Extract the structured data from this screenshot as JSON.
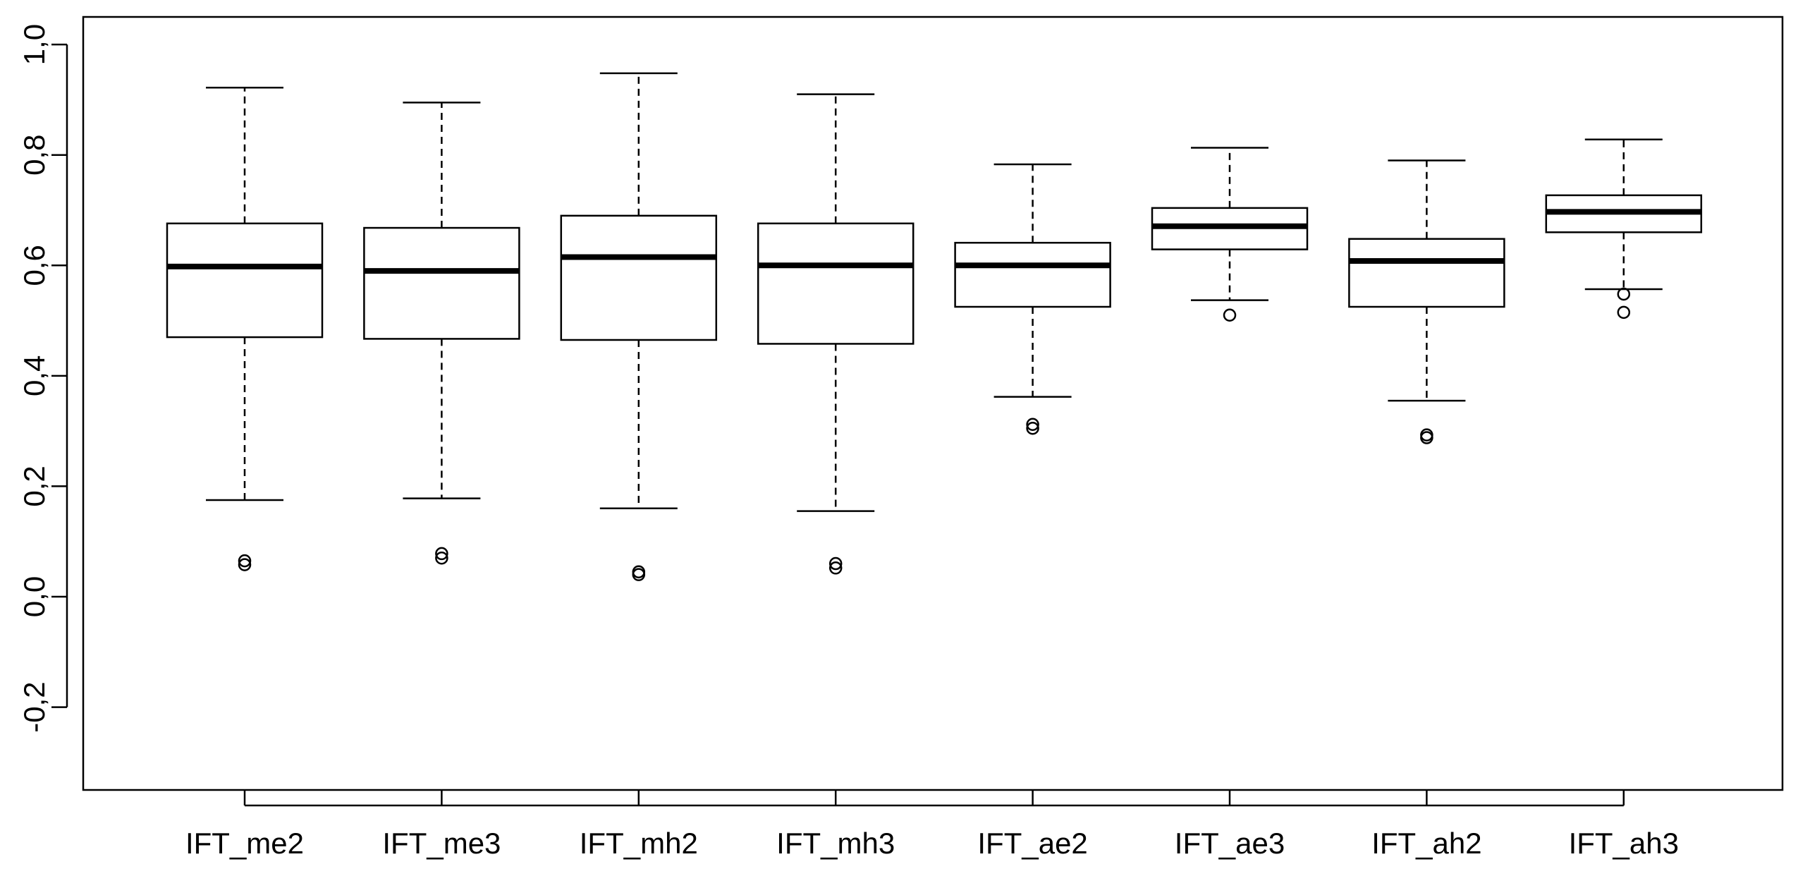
{
  "chart_data": {
    "type": "boxplot",
    "title": "",
    "xlabel": "",
    "ylabel": "",
    "ylim": [
      -0.35,
      1.05
    ],
    "y_ticks": [
      -0.2,
      0.0,
      0.2,
      0.4,
      0.6,
      0.8,
      1.0
    ],
    "y_tick_labels": [
      "-0,2",
      "0,0",
      "0,2",
      "0,4",
      "0,6",
      "0,8",
      "1,0"
    ],
    "grid": false,
    "categories": [
      "IFT_me2",
      "IFT_me3",
      "IFT_mh2",
      "IFT_mh3",
      "IFT_ae2",
      "IFT_ae3",
      "IFT_ah2",
      "IFT_ah3"
    ],
    "boxes": [
      {
        "category": "IFT_me2",
        "whisker_low": 0.175,
        "q1": 0.47,
        "median": 0.598,
        "q3": 0.676,
        "whisker_high": 0.922,
        "outliers": [
          0.058,
          0.065
        ]
      },
      {
        "category": "IFT_me3",
        "whisker_low": 0.178,
        "q1": 0.467,
        "median": 0.59,
        "q3": 0.668,
        "whisker_high": 0.895,
        "outliers": [
          0.07,
          0.078
        ]
      },
      {
        "category": "IFT_mh2",
        "whisker_low": 0.16,
        "q1": 0.465,
        "median": 0.615,
        "q3": 0.69,
        "whisker_high": 0.948,
        "outliers": [
          0.04,
          0.045
        ]
      },
      {
        "category": "IFT_mh3",
        "whisker_low": 0.155,
        "q1": 0.458,
        "median": 0.6,
        "q3": 0.676,
        "whisker_high": 0.91,
        "outliers": [
          0.052,
          0.06
        ]
      },
      {
        "category": "IFT_ae2",
        "whisker_low": 0.362,
        "q1": 0.525,
        "median": 0.6,
        "q3": 0.641,
        "whisker_high": 0.783,
        "outliers": [
          0.305,
          0.312
        ]
      },
      {
        "category": "IFT_ae3",
        "whisker_low": 0.537,
        "q1": 0.629,
        "median": 0.671,
        "q3": 0.704,
        "whisker_high": 0.813,
        "outliers": [
          0.51
        ]
      },
      {
        "category": "IFT_ah2",
        "whisker_low": 0.355,
        "q1": 0.525,
        "median": 0.608,
        "q3": 0.648,
        "whisker_high": 0.79,
        "outliers": [
          0.288,
          0.293
        ]
      },
      {
        "category": "IFT_ah3",
        "whisker_low": 0.557,
        "q1": 0.66,
        "median": 0.697,
        "q3": 0.727,
        "whisker_high": 0.828,
        "outliers": [
          0.515,
          0.548
        ]
      }
    ]
  }
}
